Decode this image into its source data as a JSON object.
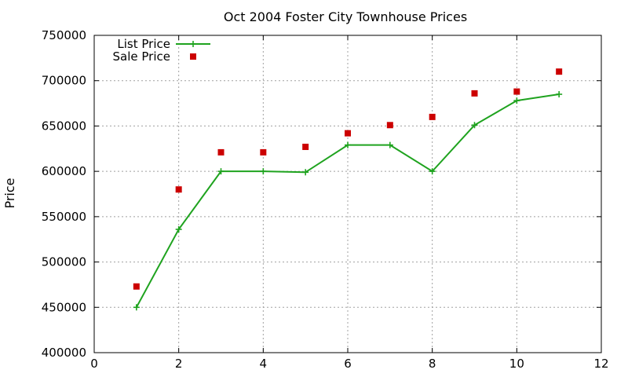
{
  "chart_data": {
    "type": "line",
    "title": "Oct 2004 Foster City Townhouse Prices",
    "xlabel": "",
    "ylabel": "Price",
    "xlim": [
      0,
      12
    ],
    "ylim": [
      400000,
      750000
    ],
    "x_ticks": [
      0,
      2,
      4,
      6,
      8,
      10,
      12
    ],
    "y_ticks": [
      400000,
      450000,
      500000,
      550000,
      600000,
      650000,
      700000,
      750000
    ],
    "grid": true,
    "legend_position": "top-left",
    "series": [
      {
        "name": "List Price",
        "style": "line-with-plus-markers",
        "color": "#1fa31f",
        "points": [
          {
            "x": 1,
            "y": 450000
          },
          {
            "x": 2,
            "y": 536000
          },
          {
            "x": 3,
            "y": 600000
          },
          {
            "x": 4,
            "y": 600000
          },
          {
            "x": 5,
            "y": 599000
          },
          {
            "x": 6,
            "y": 629000
          },
          {
            "x": 7,
            "y": 629000
          },
          {
            "x": 8,
            "y": 600000
          },
          {
            "x": 9,
            "y": 651000
          },
          {
            "x": 10,
            "y": 678000
          },
          {
            "x": 11,
            "y": 685000
          }
        ]
      },
      {
        "name": "Sale Price",
        "style": "square-markers",
        "color": "#cc0000",
        "points": [
          {
            "x": 1,
            "y": 473000
          },
          {
            "x": 2,
            "y": 580000
          },
          {
            "x": 3,
            "y": 621000
          },
          {
            "x": 4,
            "y": 621000
          },
          {
            "x": 5,
            "y": 627000
          },
          {
            "x": 6,
            "y": 642000
          },
          {
            "x": 7,
            "y": 651000
          },
          {
            "x": 8,
            "y": 660000
          },
          {
            "x": 9,
            "y": 686000
          },
          {
            "x": 10,
            "y": 688000
          },
          {
            "x": 11,
            "y": 710000
          }
        ]
      }
    ]
  }
}
